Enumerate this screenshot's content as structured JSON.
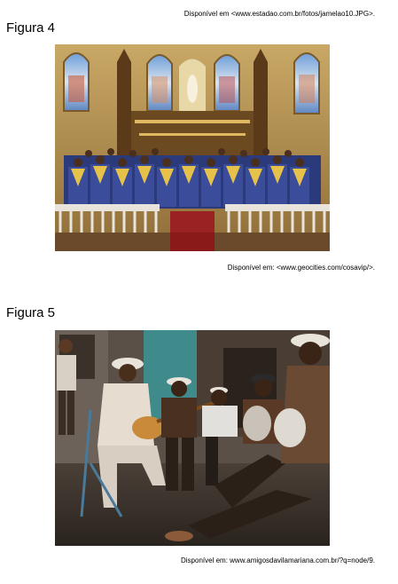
{
  "top_source": "Disponível em <www.estadao.com.br/fotos/jamelao10.JPG>.",
  "figure4": {
    "label": "Figura 4",
    "source": "Disponível em: <www.geocities.com/cosavip/>."
  },
  "figure5": {
    "label": "Figura 5",
    "source": "Disponível em: www.amigosdavilamariana.com.br/?q=node/9."
  }
}
